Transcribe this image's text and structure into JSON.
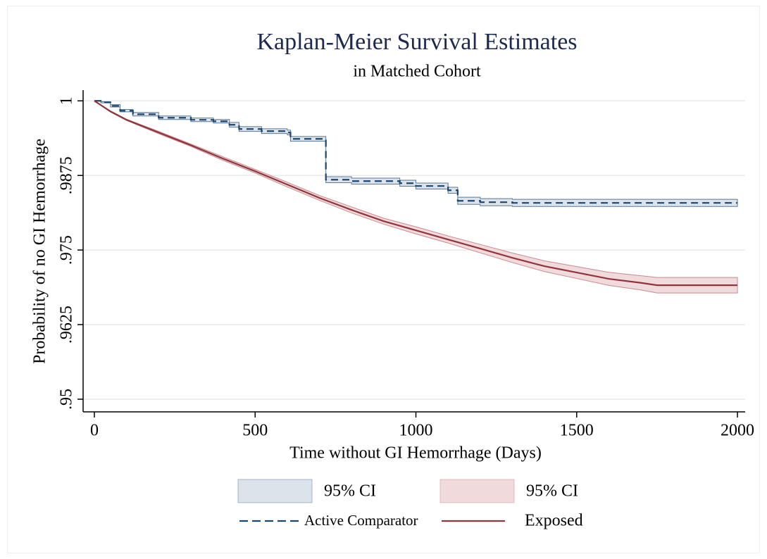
{
  "chart_data": {
    "type": "survival",
    "title": "Kaplan-Meier Survival Estimates",
    "subtitle": "in Matched Cohort",
    "x_label": "Time without GI Hemorrhage (Days)",
    "y_label": "Probability of no GI Hemorrhage",
    "xlim": [
      -35,
      2024
    ],
    "ylim": [
      0.94788,
      1.0018
    ],
    "xticks": [
      0,
      500,
      1000,
      1500,
      2000
    ],
    "yticks": [
      {
        "value": 0.95,
        "label": ".95"
      },
      {
        "value": 0.9625,
        "label": ".9625"
      },
      {
        "value": 0.975,
        "label": ".975"
      },
      {
        "value": 0.9875,
        "label": ".9875"
      },
      1
    ],
    "grid": true,
    "series": [
      {
        "name": "Active Comparator",
        "ci_label": "95% CI",
        "color": "#1a476f",
        "ci_color": "#dde3ea",
        "ci_edge": "#5a7896",
        "dashed": true,
        "interpolation": "step",
        "x": [
          0,
          20,
          50,
          80,
          120,
          200,
          300,
          370,
          420,
          450,
          520,
          600,
          610,
          720,
          800,
          950,
          1000,
          1100,
          1130,
          1200,
          1300,
          2000
        ],
        "values": [
          1,
          0.99976,
          0.99917,
          0.99835,
          0.99776,
          0.99717,
          0.99682,
          0.99658,
          0.99599,
          0.99528,
          0.99493,
          0.99469,
          0.99363,
          0.98679,
          0.98655,
          0.9862,
          0.98573,
          0.98502,
          0.98325,
          0.98302,
          0.9829,
          0.9829
        ],
        "upper": [
          1,
          0.99986,
          0.99937,
          0.99855,
          0.99806,
          0.99747,
          0.99712,
          0.99688,
          0.99639,
          0.99568,
          0.99533,
          0.99509,
          0.99403,
          0.98729,
          0.98705,
          0.9867,
          0.98623,
          0.98552,
          0.98385,
          0.98362,
          0.9835,
          0.9835
        ],
        "lower": [
          1,
          0.99966,
          0.99897,
          0.99815,
          0.99746,
          0.99687,
          0.99652,
          0.99628,
          0.99559,
          0.99488,
          0.99453,
          0.99429,
          0.99323,
          0.98629,
          0.98605,
          0.9857,
          0.98523,
          0.98452,
          0.98265,
          0.98242,
          0.9823,
          0.9823
        ]
      },
      {
        "name": "Exposed",
        "ci_label": "95% CI",
        "color": "#90353b",
        "ci_color": "#f0dadc",
        "ci_edge": "#c98a90",
        "dashed": false,
        "interpolation": "linear",
        "x": [
          0,
          50,
          100,
          200,
          300,
          400,
          500,
          600,
          700,
          800,
          900,
          1000,
          1100,
          1200,
          1300,
          1400,
          1500,
          1600,
          1700,
          1750,
          2000
        ],
        "values": [
          1,
          0.99823,
          0.99682,
          0.99469,
          0.99257,
          0.99033,
          0.98821,
          0.98597,
          0.98373,
          0.98172,
          0.97983,
          0.9783,
          0.97677,
          0.97524,
          0.9737,
          0.97229,
          0.97123,
          0.97017,
          0.9695,
          0.9691,
          0.9691
        ],
        "upper": [
          1,
          0.99833,
          0.99692,
          0.99489,
          0.99277,
          0.99063,
          0.98851,
          0.98637,
          0.98413,
          0.98222,
          0.98033,
          0.9789,
          0.97737,
          0.97594,
          0.9745,
          0.97319,
          0.97223,
          0.97127,
          0.9707,
          0.9704,
          0.9704
        ],
        "lower": [
          1,
          0.99813,
          0.99672,
          0.99449,
          0.99237,
          0.99003,
          0.98791,
          0.98557,
          0.98333,
          0.98122,
          0.97933,
          0.9777,
          0.97617,
          0.97454,
          0.9729,
          0.97139,
          0.97023,
          0.96907,
          0.9683,
          0.9678,
          0.9678
        ]
      }
    ]
  }
}
